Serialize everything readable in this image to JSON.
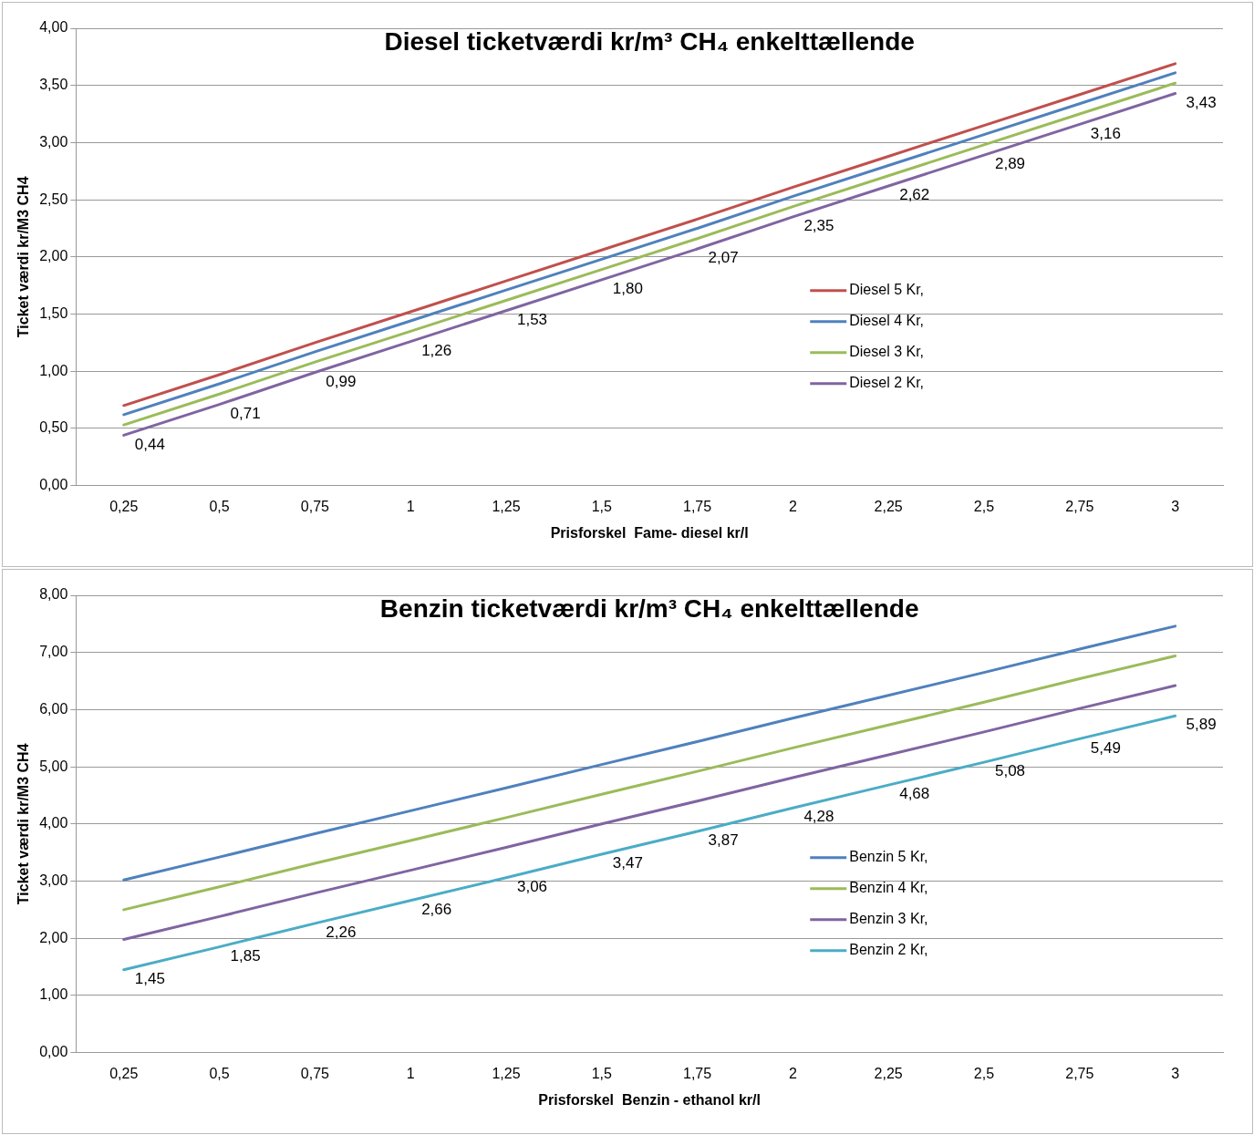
{
  "chart_data": [
    {
      "type": "line",
      "title": "Diesel ticketværdi kr/m³ CH₄ enkelttællende",
      "xlabel": "Prisforskel  Fame- diesel kr/l",
      "ylabel": "Ticket værdi kr/M3 CH4",
      "categories": [
        "0,25",
        "0,5",
        "0,75",
        "1",
        "1,25",
        "1,5",
        "1,75",
        "2",
        "2,25",
        "2,5",
        "2,75",
        "3"
      ],
      "series": [
        {
          "name": "Diesel 5 Kr,",
          "color": "#c0504d",
          "values": [
            0.7,
            0.97,
            1.25,
            1.52,
            1.79,
            2.06,
            2.33,
            2.61,
            2.88,
            3.15,
            3.42,
            3.69
          ]
        },
        {
          "name": "Diesel 4 Kr,",
          "color": "#4f81bd",
          "values": [
            0.62,
            0.89,
            1.17,
            1.44,
            1.71,
            1.98,
            2.25,
            2.53,
            2.8,
            3.07,
            3.34,
            3.61
          ]
        },
        {
          "name": "Diesel 3 Kr,",
          "color": "#9bbb59",
          "values": [
            0.53,
            0.8,
            1.08,
            1.35,
            1.62,
            1.89,
            2.16,
            2.44,
            2.71,
            2.98,
            3.25,
            3.52
          ]
        },
        {
          "name": "Diesel 2 Kr,",
          "color": "#8064a2",
          "values": [
            0.44,
            0.71,
            0.99,
            1.26,
            1.53,
            1.8,
            2.07,
            2.35,
            2.62,
            2.89,
            3.16,
            3.43
          ],
          "value_labels": [
            "0,44",
            "0,71",
            "0,99",
            "1,26",
            "1,53",
            "1,80",
            "2,07",
            "2,35",
            "2,62",
            "2,89",
            "3,16",
            "3,43"
          ]
        }
      ],
      "ylim": [
        0,
        4
      ],
      "yticks": [
        {
          "value": 0,
          "label": "0,00"
        },
        {
          "value": 0.5,
          "label": "0,50"
        },
        {
          "value": 1,
          "label": "1,00"
        },
        {
          "value": 1.5,
          "label": "1,50"
        },
        {
          "value": 2,
          "label": "2,00"
        },
        {
          "value": 2.5,
          "label": "2,50"
        },
        {
          "value": 3,
          "label": "3,00"
        },
        {
          "value": 3.5,
          "label": "3,50"
        },
        {
          "value": 4,
          "label": "4,00"
        }
      ],
      "grid": "y",
      "legend": "right",
      "marker": "none",
      "line_style": "solid"
    },
    {
      "type": "line",
      "title": "Benzin ticketværdi kr/m³ CH₄ enkelttællende",
      "xlabel": "Prisforskel  Benzin - ethanol kr/l",
      "ylabel": "Ticket værdi kr/M3 CH4",
      "categories": [
        "0,25",
        "0,5",
        "0,75",
        "1",
        "1,25",
        "1,5",
        "1,75",
        "2",
        "2,25",
        "2,5",
        "2,75",
        "3"
      ],
      "series": [
        {
          "name": "Benzin 5 Kr,",
          "color": "#4f81bd",
          "values": [
            3.02,
            3.42,
            3.83,
            4.23,
            4.63,
            5.04,
            5.44,
            5.85,
            6.25,
            6.65,
            7.06,
            7.46
          ]
        },
        {
          "name": "Benzin 4 Kr,",
          "color": "#9bbb59",
          "values": [
            2.5,
            2.9,
            3.31,
            3.71,
            4.11,
            4.52,
            4.92,
            5.33,
            5.73,
            6.13,
            6.54,
            6.94
          ]
        },
        {
          "name": "Benzin 3 Kr,",
          "color": "#8064a2",
          "values": [
            1.98,
            2.38,
            2.79,
            3.19,
            3.59,
            4.0,
            4.4,
            4.81,
            5.21,
            5.61,
            6.02,
            6.42
          ]
        },
        {
          "name": "Benzin 2 Kr,",
          "color": "#4bacc6",
          "values": [
            1.45,
            1.85,
            2.26,
            2.66,
            3.06,
            3.47,
            3.87,
            4.28,
            4.68,
            5.08,
            5.49,
            5.89
          ],
          "value_labels": [
            "1,45",
            "1,85",
            "2,26",
            "2,66",
            "3,06",
            "3,47",
            "3,87",
            "4,28",
            "4,68",
            "5,08",
            "5,49",
            "5,89"
          ]
        }
      ],
      "ylim": [
        0,
        8
      ],
      "yticks": [
        {
          "value": 0,
          "label": "0,00"
        },
        {
          "value": 1,
          "label": "1,00"
        },
        {
          "value": 2,
          "label": "2,00"
        },
        {
          "value": 3,
          "label": "3,00"
        },
        {
          "value": 4,
          "label": "4,00"
        },
        {
          "value": 5,
          "label": "5,00"
        },
        {
          "value": 6,
          "label": "6,00"
        },
        {
          "value": 7,
          "label": "7,00"
        },
        {
          "value": 8,
          "label": "8,00"
        }
      ],
      "grid": "y",
      "legend": "right",
      "marker": "none",
      "line_style": "solid"
    }
  ]
}
